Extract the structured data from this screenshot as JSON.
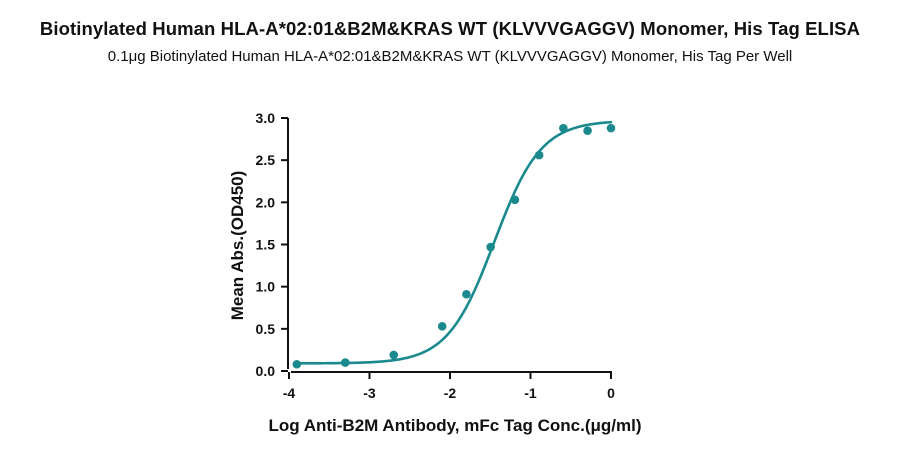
{
  "chart_data": {
    "type": "scatter",
    "title": "Biotinylated Human HLA-A*02:01&B2M&KRAS WT (KLVVVGAGGV) Monomer, His Tag ELISA",
    "subtitle": "0.1μg Biotinylated Human HLA-A*02:01&B2M&KRAS WT (KLVVVGAGGV) Monomer, His Tag Per Well",
    "xlabel": "Log Anti-B2M Antibody, mFc Tag Conc.(μg/ml)",
    "ylabel": "Mean Abs.(OD450)",
    "xlim": [
      -4,
      0
    ],
    "ylim": [
      0,
      3.0
    ],
    "x_ticks": [
      "-4",
      "-3",
      "-2",
      "-1",
      "0"
    ],
    "y_ticks": [
      "0.0",
      "0.5",
      "1.0",
      "1.5",
      "2.0",
      "2.5",
      "3.0"
    ],
    "grid": false,
    "color": "#1a8a8e",
    "series": [
      {
        "x": [
          -3.903,
          -3.301,
          -2.699,
          -2.097,
          -1.796,
          -1.495,
          -1.194,
          -0.893,
          -0.592,
          -0.291,
          0.0
        ],
        "y": [
          0.08,
          0.1,
          0.19,
          0.53,
          0.91,
          1.47,
          2.03,
          2.56,
          2.88,
          2.85,
          2.88
        ]
      }
    ],
    "fit": {
      "model": "4PL",
      "bottom": 0.09,
      "top": 2.97,
      "logEC50": -1.45,
      "hill": 1.5
    }
  }
}
